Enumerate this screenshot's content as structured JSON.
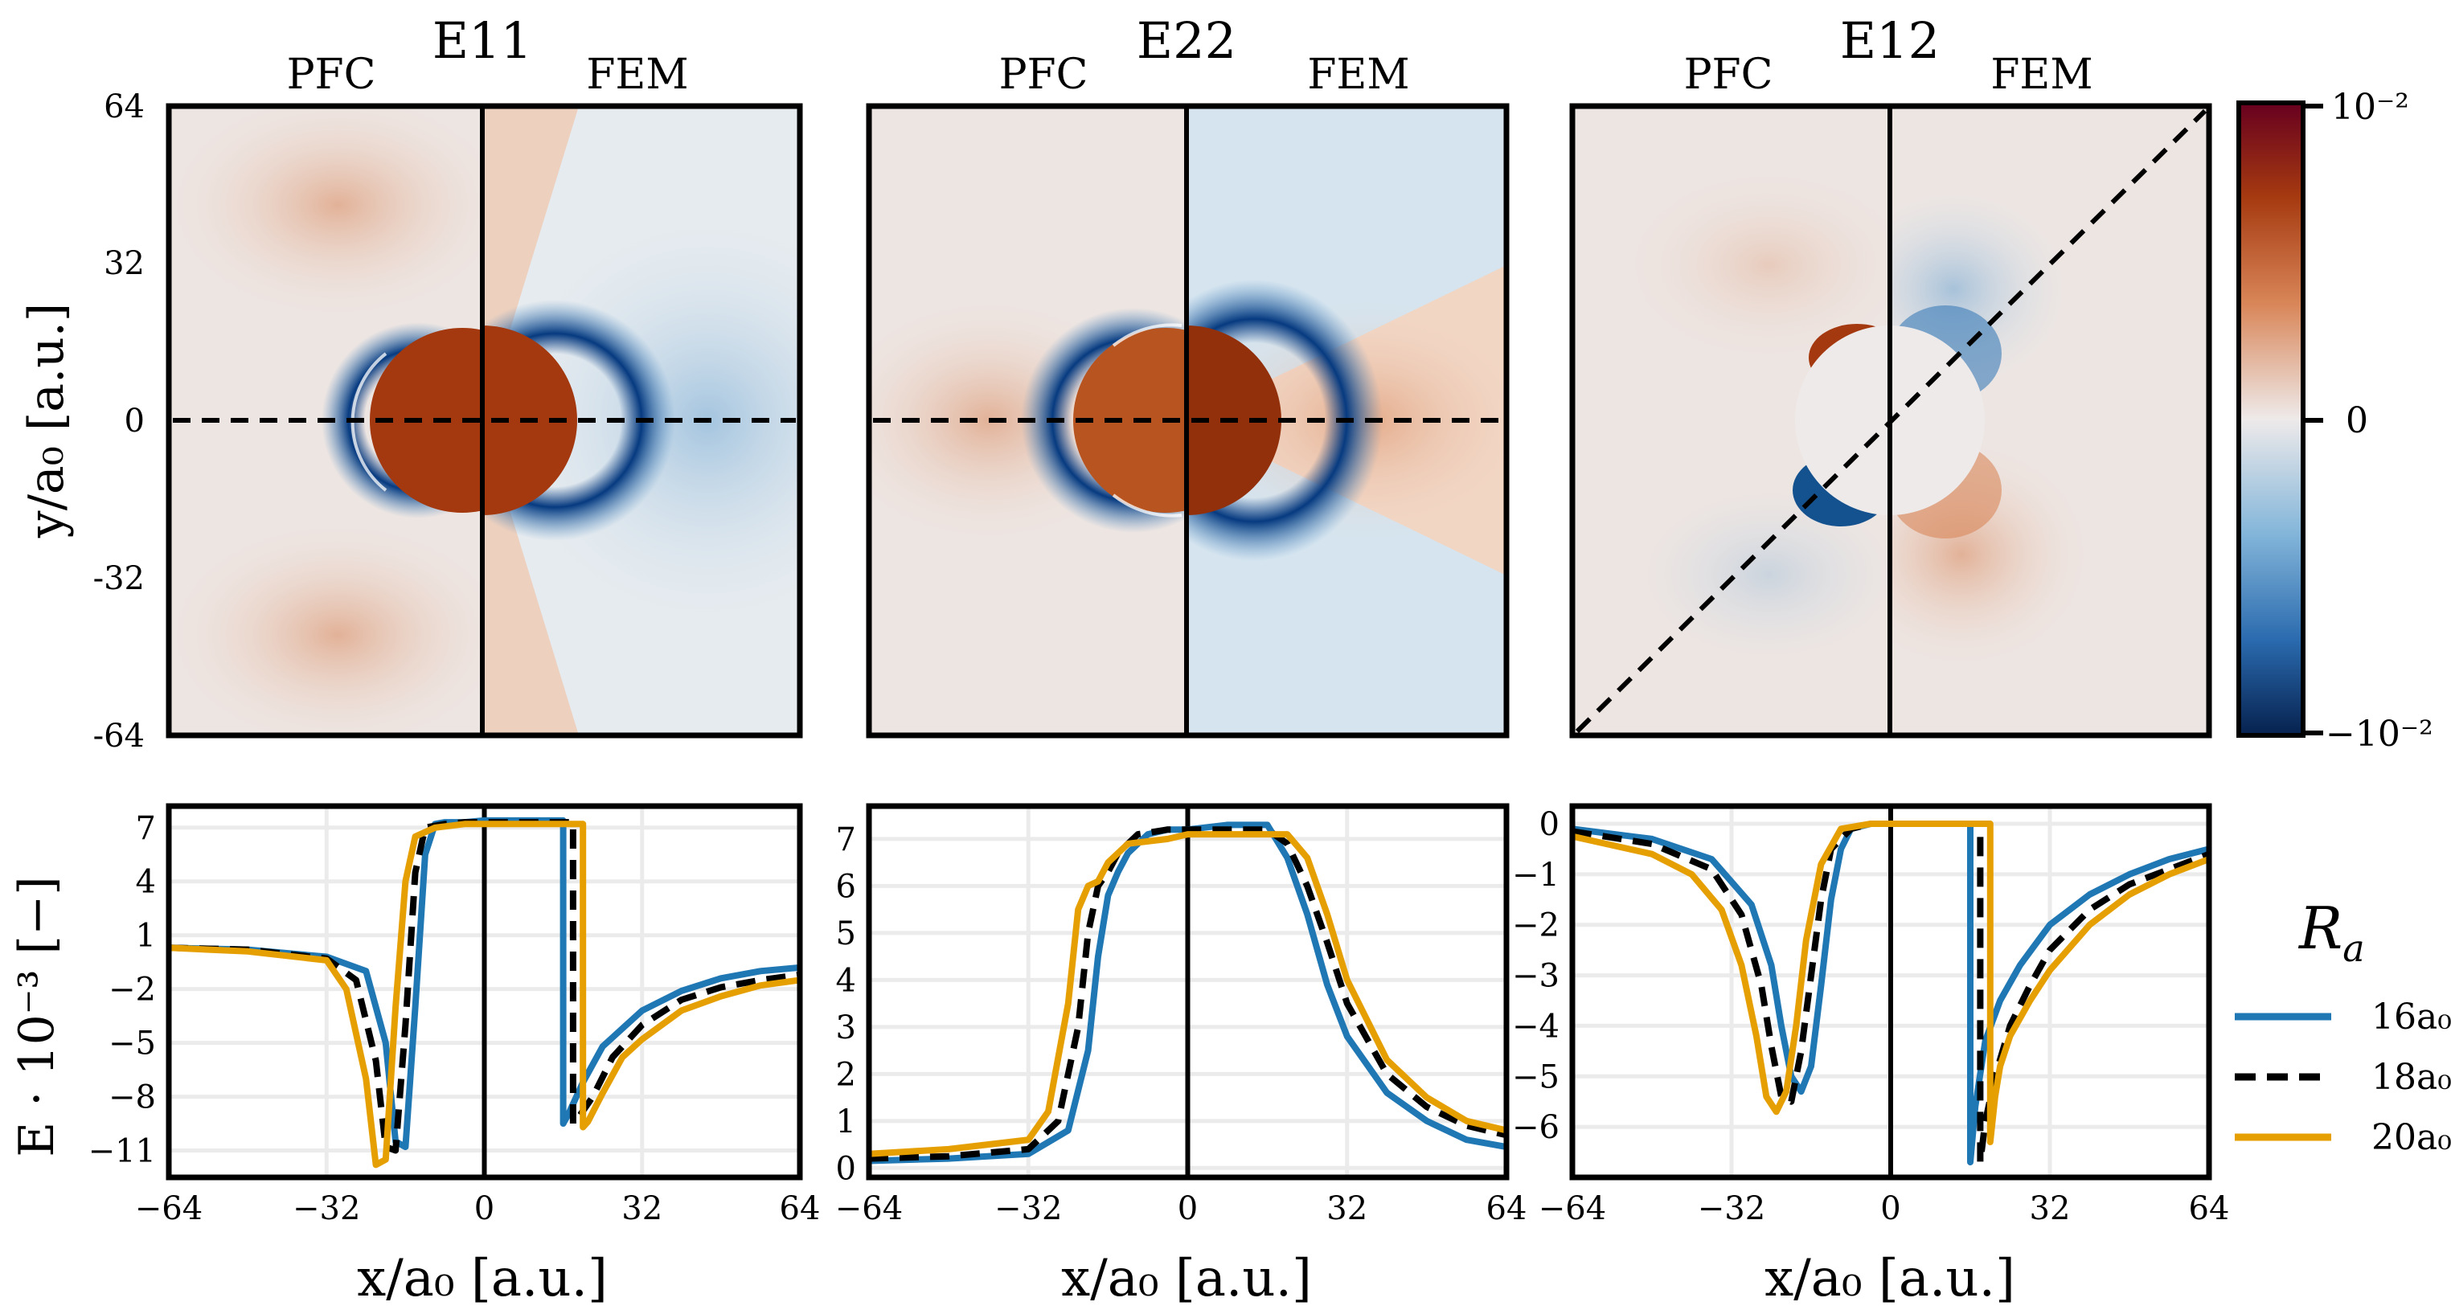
{
  "ylabel_top": "y/a₀ [a.u.]",
  "ylabel_bottom": "E · 10⁻³ [−]",
  "xlabel": "x/a₀ [a.u.]",
  "colors": {
    "neg": "#063a80",
    "pos": "#7f1d0a",
    "zero": "#ece8e6",
    "r16": "#1f77b4",
    "r18": "#000000",
    "r20": "#e69f00"
  },
  "chart_data": [
    {
      "type": "heatmap",
      "title": "E11",
      "left_label": "PFC",
      "right_label": "FEM",
      "xlim": [
        -64,
        64
      ],
      "ylim": [
        -64,
        64
      ],
      "yticks": [
        64,
        32,
        0,
        -32,
        -64
      ],
      "cut": "horizontal"
    },
    {
      "type": "heatmap",
      "title": "E22",
      "left_label": "PFC",
      "right_label": "FEM",
      "xlim": [
        -64,
        64
      ],
      "ylim": [
        -64,
        64
      ],
      "cut": "horizontal"
    },
    {
      "type": "heatmap",
      "title": "E12",
      "left_label": "PFC",
      "right_label": "FEM",
      "xlim": [
        -64,
        64
      ],
      "ylim": [
        -64,
        64
      ],
      "cut": "diagonal"
    },
    {
      "type": "line",
      "xlim": [
        -64,
        64
      ],
      "ylim": [
        -12.5,
        8.2
      ],
      "xticks": [
        -64,
        -32,
        0,
        32,
        64
      ],
      "yticks": [
        7,
        4,
        1,
        -2,
        -5,
        -8,
        -11
      ],
      "series": [
        {
          "name": "16a₀",
          "x": [
            -64,
            -48,
            -32,
            -24,
            -20,
            -18,
            -16,
            -14,
            -12,
            -10,
            -8,
            -4,
            0,
            8,
            16,
            16,
            17,
            20,
            24,
            32,
            40,
            48,
            56,
            64
          ],
          "y": [
            0.3,
            0.2,
            -0.2,
            -1.0,
            -5.0,
            -10.5,
            -10.8,
            -3.0,
            5.5,
            7.2,
            7.3,
            7.3,
            7.4,
            7.4,
            7.4,
            -9.5,
            -9.0,
            -7.2,
            -5.2,
            -3.2,
            -2.1,
            -1.4,
            -1.0,
            -0.8
          ]
        },
        {
          "name": "18a₀",
          "x": [
            -64,
            -48,
            -32,
            -26,
            -22,
            -20,
            -18,
            -16,
            -14,
            -12,
            -8,
            -4,
            0,
            8,
            18,
            18,
            19,
            22,
            26,
            32,
            40,
            48,
            56,
            64
          ],
          "y": [
            0.3,
            0.2,
            -0.3,
            -1.5,
            -6.0,
            -10.8,
            -11.0,
            -4.0,
            4.5,
            7.0,
            7.2,
            7.3,
            7.3,
            7.3,
            7.3,
            -9.5,
            -9.2,
            -8.0,
            -5.8,
            -4.0,
            -2.6,
            -1.9,
            -1.5,
            -1.2
          ]
        },
        {
          "name": "20a₀",
          "x": [
            -64,
            -48,
            -32,
            -28,
            -24,
            -22,
            -20,
            -18,
            -16,
            -14,
            -10,
            -4,
            0,
            8,
            20,
            20,
            21,
            24,
            28,
            32,
            40,
            48,
            56,
            64
          ],
          "y": [
            0.3,
            0.1,
            -0.4,
            -2.0,
            -7.0,
            -11.8,
            -11.5,
            -3.0,
            4.0,
            6.5,
            7.0,
            7.2,
            7.2,
            7.2,
            7.2,
            -9.7,
            -9.4,
            -7.8,
            -5.8,
            -4.8,
            -3.2,
            -2.4,
            -1.8,
            -1.5
          ]
        }
      ]
    },
    {
      "type": "line",
      "xlim": [
        -64,
        64
      ],
      "ylim": [
        -0.2,
        7.7
      ],
      "xticks": [
        -64,
        -32,
        0,
        32,
        64
      ],
      "yticks": [
        0,
        1,
        2,
        3,
        4,
        5,
        6,
        7
      ],
      "series": [
        {
          "name": "16a₀",
          "x": [
            -64,
            -48,
            -32,
            -24,
            -20,
            -18,
            -16,
            -14,
            -12,
            -8,
            -4,
            0,
            8,
            16,
            20,
            24,
            28,
            32,
            40,
            48,
            56,
            64
          ],
          "y": [
            0.15,
            0.2,
            0.3,
            0.8,
            2.5,
            4.5,
            5.8,
            6.3,
            6.7,
            7.1,
            7.2,
            7.2,
            7.3,
            7.3,
            6.6,
            5.4,
            3.9,
            2.8,
            1.6,
            1.0,
            0.6,
            0.45
          ]
        },
        {
          "name": "18a₀",
          "x": [
            -64,
            -48,
            -32,
            -26,
            -22,
            -20,
            -18,
            -16,
            -14,
            -10,
            -4,
            0,
            8,
            16,
            20,
            24,
            28,
            32,
            40,
            48,
            56,
            64
          ],
          "y": [
            0.2,
            0.25,
            0.4,
            1.0,
            3.0,
            5.0,
            6.0,
            6.3,
            6.7,
            7.1,
            7.2,
            7.2,
            7.2,
            7.2,
            6.9,
            6.0,
            4.8,
            3.5,
            2.0,
            1.3,
            0.9,
            0.7
          ]
        },
        {
          "name": "20a₀",
          "x": [
            -64,
            -48,
            -32,
            -28,
            -24,
            -22,
            -20,
            -18,
            -16,
            -12,
            -4,
            0,
            8,
            16,
            20,
            24,
            28,
            32,
            40,
            48,
            56,
            64
          ],
          "y": [
            0.3,
            0.4,
            0.6,
            1.2,
            3.5,
            5.5,
            6.0,
            6.1,
            6.5,
            6.9,
            7.0,
            7.1,
            7.1,
            7.1,
            7.1,
            6.6,
            5.4,
            4.0,
            2.3,
            1.5,
            1.0,
            0.8
          ]
        }
      ]
    },
    {
      "type": "line",
      "xlim": [
        -64,
        64
      ],
      "ylim": [
        -7.0,
        0.35
      ],
      "xticks": [
        -64,
        -32,
        0,
        32,
        64
      ],
      "yticks": [
        0,
        -1,
        -2,
        -3,
        -4,
        -5,
        -6
      ],
      "series": [
        {
          "name": "16a₀",
          "x": [
            -64,
            -48,
            -36,
            -28,
            -24,
            -22,
            -20,
            -18,
            -16,
            -14,
            -12,
            -10,
            -8,
            -4,
            0,
            16,
            16,
            17,
            19,
            22,
            26,
            32,
            40,
            48,
            56,
            64
          ],
          "y": [
            -0.1,
            -0.3,
            -0.7,
            -1.6,
            -2.8,
            -4.0,
            -5.0,
            -5.3,
            -4.8,
            -3.2,
            -1.5,
            -0.5,
            -0.1,
            0,
            0,
            0,
            -6.7,
            -5.6,
            -4.3,
            -3.5,
            -2.8,
            -2.0,
            -1.4,
            -1.0,
            -0.7,
            -0.5
          ]
        },
        {
          "name": "18a₀",
          "x": [
            -64,
            -48,
            -36,
            -30,
            -26,
            -24,
            -22,
            -20,
            -18,
            -16,
            -14,
            -12,
            -8,
            -4,
            0,
            18,
            18,
            19,
            21,
            24,
            28,
            32,
            40,
            48,
            56,
            64
          ],
          "y": [
            -0.15,
            -0.4,
            -0.9,
            -1.8,
            -3.2,
            -4.4,
            -5.4,
            -5.5,
            -4.5,
            -3.0,
            -1.5,
            -0.5,
            -0.1,
            0,
            0,
            0,
            -6.7,
            -5.9,
            -5.0,
            -4.0,
            -3.2,
            -2.5,
            -1.7,
            -1.2,
            -0.9,
            -0.6
          ]
        },
        {
          "name": "20a₀",
          "x": [
            -64,
            -48,
            -40,
            -34,
            -30,
            -27,
            -25,
            -23,
            -21,
            -19,
            -17,
            -14,
            -10,
            -4,
            0,
            20,
            20,
            21,
            22,
            24,
            28,
            32,
            40,
            48,
            56,
            64
          ],
          "y": [
            -0.25,
            -0.6,
            -1.0,
            -1.7,
            -2.8,
            -4.2,
            -5.4,
            -5.7,
            -5.3,
            -4.0,
            -2.3,
            -0.8,
            -0.1,
            0,
            0,
            0,
            -6.3,
            -5.4,
            -4.8,
            -4.2,
            -3.5,
            -2.9,
            -2.0,
            -1.4,
            -1.0,
            -0.7
          ]
        }
      ]
    }
  ],
  "colorbar": {
    "top": "10⁻²",
    "mid": "0",
    "bottom": "−10⁻²"
  },
  "legend": {
    "title": "R",
    "title_sub": "a",
    "items": [
      "16a₀",
      "18a₀",
      "20a₀"
    ]
  }
}
